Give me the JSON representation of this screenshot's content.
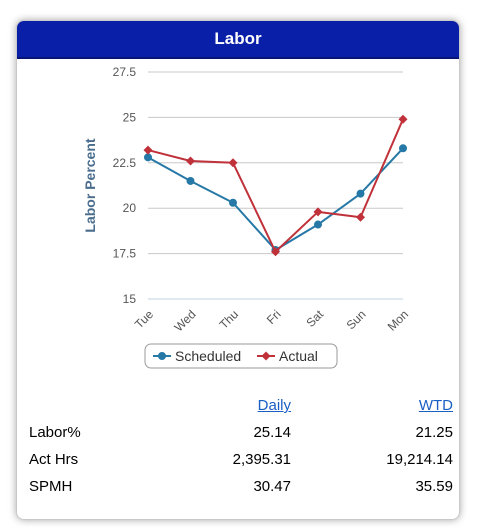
{
  "widget": {
    "title": "Labor"
  },
  "chart_data": {
    "type": "line",
    "ylabel": "Labor Percent",
    "xlabel": "",
    "categories": [
      "Tue",
      "Wed",
      "Thu",
      "Fri",
      "Sat",
      "Sun",
      "Mon"
    ],
    "yticks": [
      "27.5",
      "25",
      "22.5",
      "20",
      "17.5",
      "15"
    ],
    "ylim": [
      15,
      27.5
    ],
    "grid": true,
    "legend_position": "bottom",
    "series": [
      {
        "name": "Scheduled",
        "color": "#2678a6",
        "marker": "circle",
        "values": [
          22.8,
          21.5,
          20.3,
          17.7,
          19.1,
          20.8,
          23.3
        ]
      },
      {
        "name": "Actual",
        "color": "#c0313a",
        "marker": "diamond",
        "values": [
          23.2,
          22.6,
          22.5,
          17.6,
          19.8,
          19.5,
          24.9
        ]
      }
    ]
  },
  "stats": {
    "headers": {
      "daily": "Daily",
      "wtd": "WTD"
    },
    "rows": [
      {
        "label": "Labor%",
        "daily": "25.14",
        "wtd": "21.25"
      },
      {
        "label": "Act Hrs",
        "daily": "2,395.31",
        "wtd": "19,214.14"
      },
      {
        "label": "SPMH",
        "daily": "30.47",
        "wtd": "35.59"
      }
    ]
  }
}
